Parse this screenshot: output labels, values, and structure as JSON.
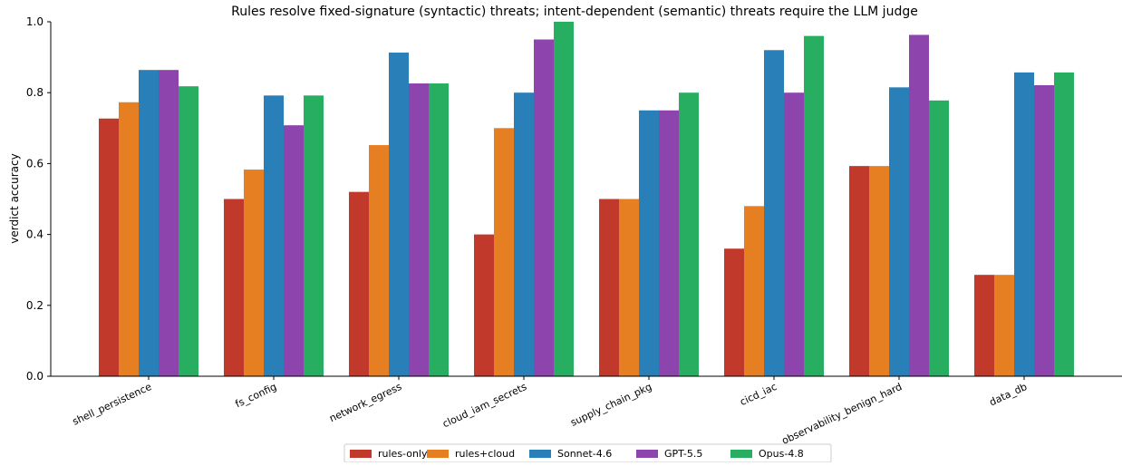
{
  "chart_data": {
    "type": "bar",
    "title": "Rules resolve fixed-signature (syntactic) threats; intent-dependent (semantic) threats require the LLM judge",
    "xlabel": "",
    "ylabel": "verdict accuracy",
    "ylim": [
      0,
      1.0
    ],
    "yticks": [
      "0.0",
      "0.2",
      "0.4",
      "0.6",
      "0.8",
      "1.0"
    ],
    "grid": false,
    "legend_position": "bottom-center",
    "categories": [
      "shell_persistence",
      "fs_config",
      "network_egress",
      "cloud_iam_secrets",
      "supply_chain_pkg",
      "cicd_iac",
      "observability_benign_hard",
      "data_db"
    ],
    "series": [
      {
        "name": "rules-only",
        "color": "#c0392b",
        "values": [
          0.727,
          0.5,
          0.52,
          0.4,
          0.5,
          0.36,
          0.593,
          0.286
        ]
      },
      {
        "name": "rules+cloud",
        "color": "#e67e22",
        "values": [
          0.773,
          0.583,
          0.652,
          0.7,
          0.5,
          0.48,
          0.593,
          0.286
        ]
      },
      {
        "name": "Sonnet-4.6",
        "color": "#2980b9",
        "values": [
          0.864,
          0.792,
          0.913,
          0.8,
          0.75,
          0.92,
          0.815,
          0.857
        ]
      },
      {
        "name": "GPT-5.5",
        "color": "#8e44ad",
        "values": [
          0.864,
          0.708,
          0.826,
          0.95,
          0.75,
          0.8,
          0.963,
          0.821
        ]
      },
      {
        "name": "Opus-4.8",
        "color": "#27ae60",
        "values": [
          0.818,
          0.792,
          0.826,
          1.0,
          0.8,
          0.96,
          0.778,
          0.857
        ]
      }
    ]
  }
}
